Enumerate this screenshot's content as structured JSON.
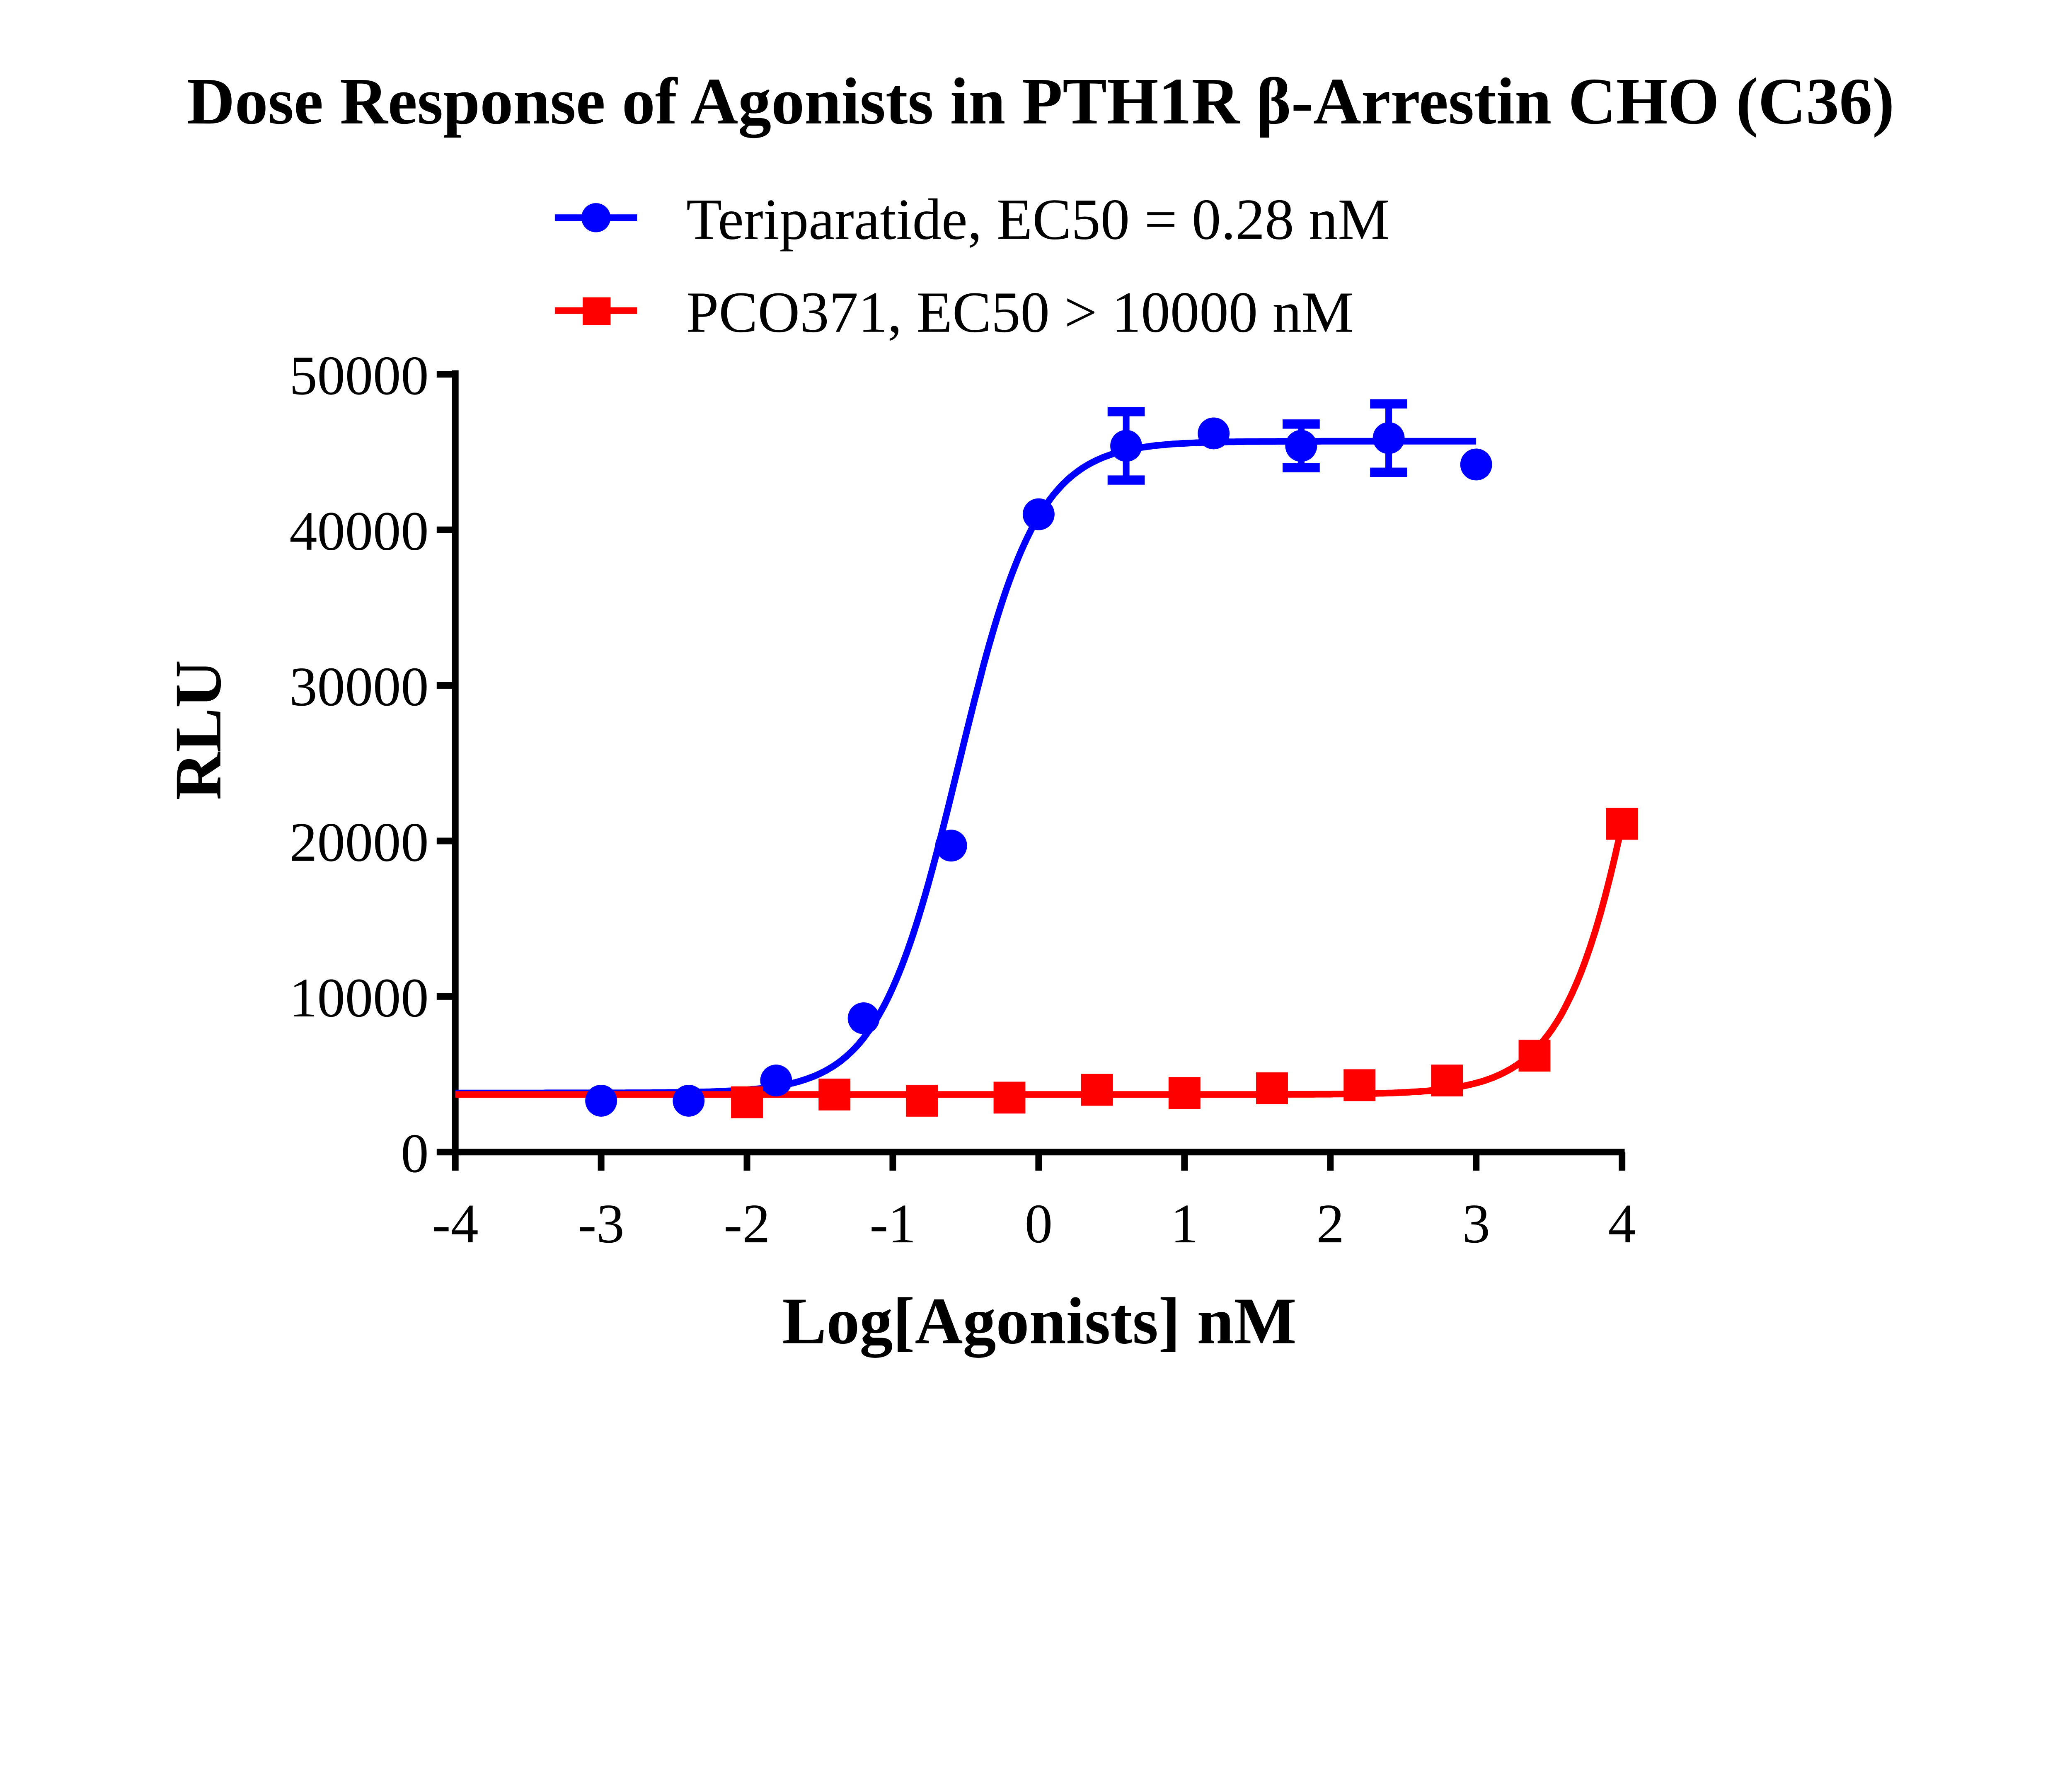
{
  "chart_data": {
    "type": "scatter",
    "title": "Dose Response of Agonists in PTH1R β-Arrestin CHO (C36)",
    "xlabel": "Log[Agonists] nM",
    "ylabel": "RLU",
    "xlim": [
      -4,
      4
    ],
    "ylim": [
      0,
      50000
    ],
    "xticks": [
      "-4",
      "-3",
      "-2",
      "-1",
      "0",
      "1",
      "2",
      "3",
      "4"
    ],
    "yticks": [
      "0",
      "10000",
      "20000",
      "30000",
      "40000",
      "50000"
    ],
    "grid": false,
    "legend_placement": "top",
    "series": [
      {
        "name": "Teriparatide, EC50 = 0.28 nM",
        "color": "#0000ff",
        "marker": "circle",
        "x": [
          -3,
          -2.4,
          -1.8,
          -1.2,
          -0.6,
          0,
          0.6,
          1.2,
          1.8,
          2.4,
          3
        ],
        "y": [
          3300,
          3300,
          4600,
          8600,
          19700,
          41000,
          45400,
          46200,
          45400,
          45900,
          44200
        ],
        "error": [
          0,
          0,
          0,
          0,
          0,
          0,
          2200,
          0,
          1400,
          2200,
          0
        ],
        "fit": "sigmoidal dose-response"
      },
      {
        "name": "PCO371, EC50 > 10000 nM",
        "color": "#ff0000",
        "marker": "square",
        "x": [
          -2,
          -1.4,
          -0.8,
          -0.2,
          0.4,
          1,
          1.6,
          2.2,
          2.8,
          3.4,
          4
        ],
        "y": [
          3200,
          3700,
          3300,
          3500,
          4000,
          3800,
          4100,
          4300,
          4600,
          6200,
          21100
        ],
        "error": [
          0,
          0,
          0,
          0,
          0,
          0,
          0,
          0,
          0,
          0,
          0
        ],
        "fit": "sigmoidal dose-response"
      }
    ]
  }
}
